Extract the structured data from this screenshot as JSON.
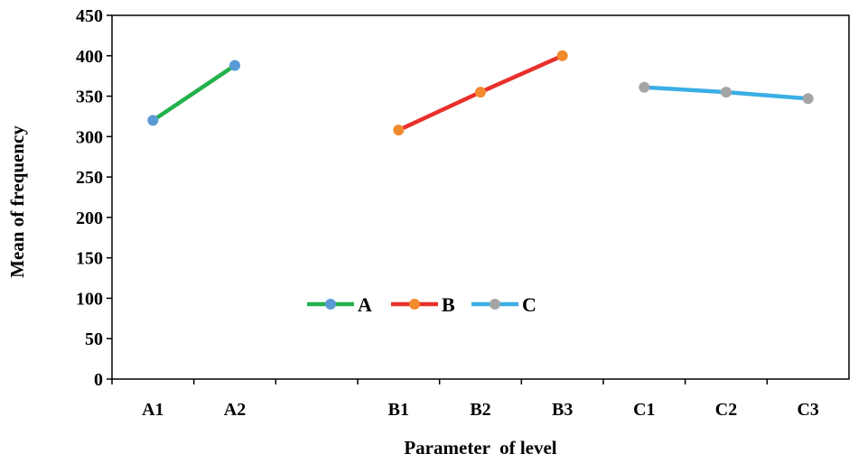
{
  "chart_data": {
    "type": "line",
    "categories": [
      "A1",
      "A2",
      "",
      "B1",
      "B2",
      "B3",
      "C1",
      "C2",
      "C3"
    ],
    "series": [
      {
        "name": "A",
        "line_color": "#22b14c",
        "marker_color": "#5b9bd5",
        "points": [
          [
            0,
            320
          ],
          [
            1,
            388
          ]
        ]
      },
      {
        "name": "B",
        "line_color": "#e8302a",
        "marker_color": "#f28a2e",
        "points": [
          [
            3,
            308
          ],
          [
            4,
            355
          ],
          [
            5,
            400
          ]
        ]
      },
      {
        "name": "C",
        "line_color": "#3aaee5",
        "marker_color": "#a5a5a5",
        "points": [
          [
            6,
            361
          ],
          [
            7,
            355
          ],
          [
            8,
            347
          ]
        ]
      }
    ],
    "xlabel": "Parameter  of level",
    "ylabel": "Mean of frequency",
    "ylim": [
      0,
      450
    ],
    "yticks": [
      0,
      50,
      100,
      150,
      200,
      250,
      300,
      350,
      400,
      450
    ],
    "grid": false,
    "legend_position": "inside-bottom-center"
  }
}
